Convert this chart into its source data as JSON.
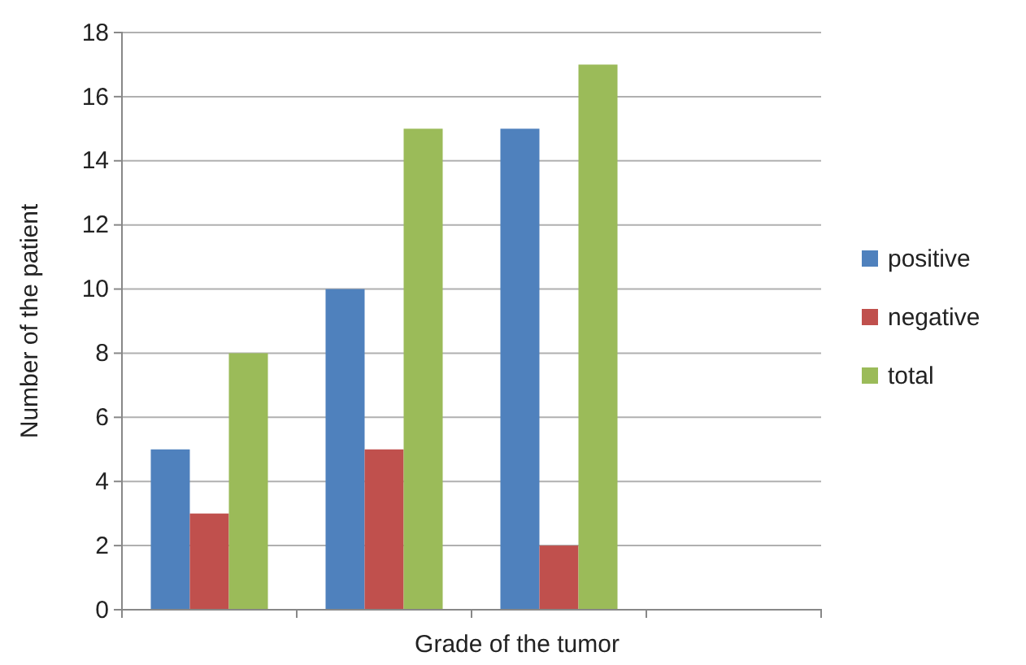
{
  "chart_data": {
    "type": "bar",
    "xlabel": "Grade of the tumor",
    "ylabel": "Number of the patient",
    "categories": [
      null,
      null,
      null,
      null
    ],
    "series": [
      {
        "name": "positive",
        "color": "#4f81bd",
        "values": [
          5,
          10,
          15,
          null
        ]
      },
      {
        "name": "negative",
        "color": "#c0504d",
        "values": [
          3,
          5,
          2,
          null
        ]
      },
      {
        "name": "total",
        "color": "#9bbb59",
        "values": [
          8,
          15,
          17,
          null
        ]
      }
    ],
    "ylim": [
      0,
      18
    ],
    "yticks": [
      0,
      2,
      4,
      6,
      8,
      10,
      12,
      14,
      16,
      18
    ],
    "grid": "y",
    "legend": "right"
  }
}
